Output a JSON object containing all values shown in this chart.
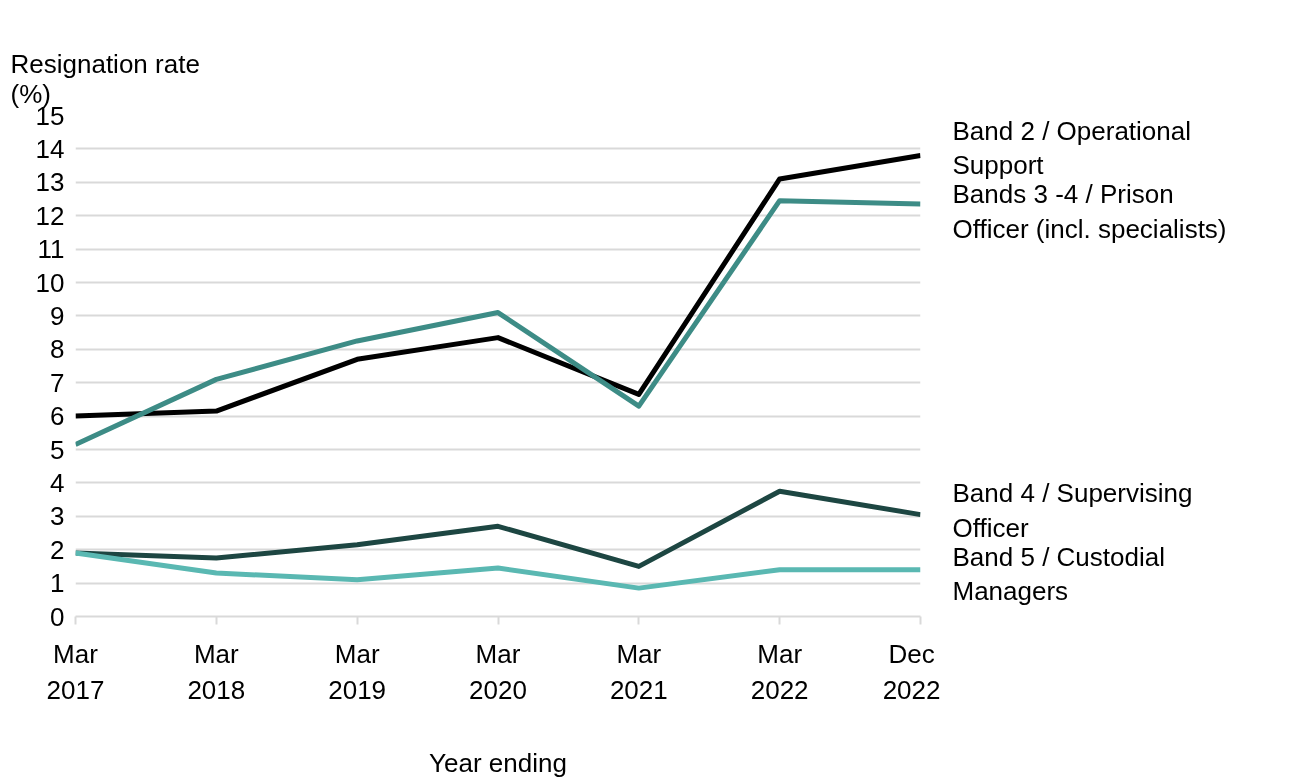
{
  "chart_data": {
    "type": "line",
    "ylabel": "Resignation rate\n(%)",
    "xlabel": "Year ending",
    "categories": [
      "Mar\n2017",
      "Mar\n2018",
      "Mar\n2019",
      "Mar\n2020",
      "Mar\n2021",
      "Mar\n2022",
      "Dec\n2022"
    ],
    "ylim": [
      0,
      15
    ],
    "yticks": [
      0,
      1,
      2,
      3,
      4,
      5,
      6,
      7,
      8,
      9,
      10,
      11,
      12,
      13,
      14,
      15
    ],
    "grid": "y",
    "marker": "none",
    "line_style": "solid",
    "series": [
      {
        "name": "Band 2 / Operational\nSupport",
        "color": "#000000",
        "values": [
          6.0,
          6.15,
          7.7,
          8.35,
          6.65,
          13.1,
          13.8
        ]
      },
      {
        "name": "Bands 3 -4 / Prison\nOfficer (incl. specialists)",
        "color": "#3d8c86",
        "values": [
          5.15,
          7.1,
          8.25,
          9.1,
          6.3,
          12.45,
          12.35
        ]
      },
      {
        "name": "Band 4 / Supervising\nOfficer",
        "color": "#1d4642",
        "values": [
          1.9,
          1.75,
          2.15,
          2.7,
          1.5,
          3.75,
          3.05
        ]
      },
      {
        "name": "Band 5 / Custodial\nManagers",
        "color": "#5ab8b2",
        "values": [
          1.9,
          1.3,
          1.1,
          1.45,
          0.85,
          1.4,
          1.4
        ]
      }
    ]
  }
}
